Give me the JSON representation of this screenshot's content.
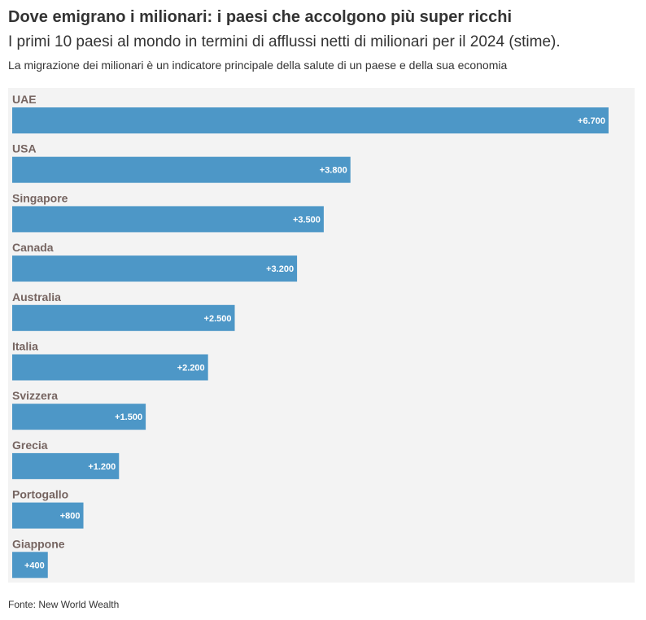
{
  "title": "Dove emigrano i milionari: i paesi che accolgono più super ricchi",
  "subtitle": "I primi 10 paesi al mondo in termini di afflussi netti di milionari per il 2024 (stime).",
  "note": "La migrazione dei milionari è un indicatore principale della salute di un paese e della sua economia",
  "source": "Fonte: New World Wealth",
  "colors": {
    "bar": "#4d97c7",
    "plot_bg": "#f3f3f3",
    "category_text": "#766561"
  },
  "chart_data": {
    "type": "bar",
    "orientation": "horizontal",
    "title": "Dove emigrano i milionari: i paesi che accolgono più super ricchi",
    "subtitle": "I primi 10 paesi al mondo in termini di afflussi netti di milionari per il 2024 (stime).",
    "categories": [
      "UAE",
      "USA",
      "Singapore",
      "Canada",
      "Australia",
      "Italia",
      "Svizzera",
      "Grecia",
      "Portogallo",
      "Giappone"
    ],
    "values": [
      6700,
      3800,
      3500,
      3200,
      2500,
      2200,
      1500,
      1200,
      800,
      400
    ],
    "value_labels": [
      "+6.700",
      "+3.800",
      "+3.500",
      "+3.200",
      "+2.500",
      "+2.200",
      "+1.500",
      "+1.200",
      "+800",
      "+400"
    ],
    "xlim": [
      0,
      6700
    ],
    "grid": false,
    "legend": "none"
  }
}
